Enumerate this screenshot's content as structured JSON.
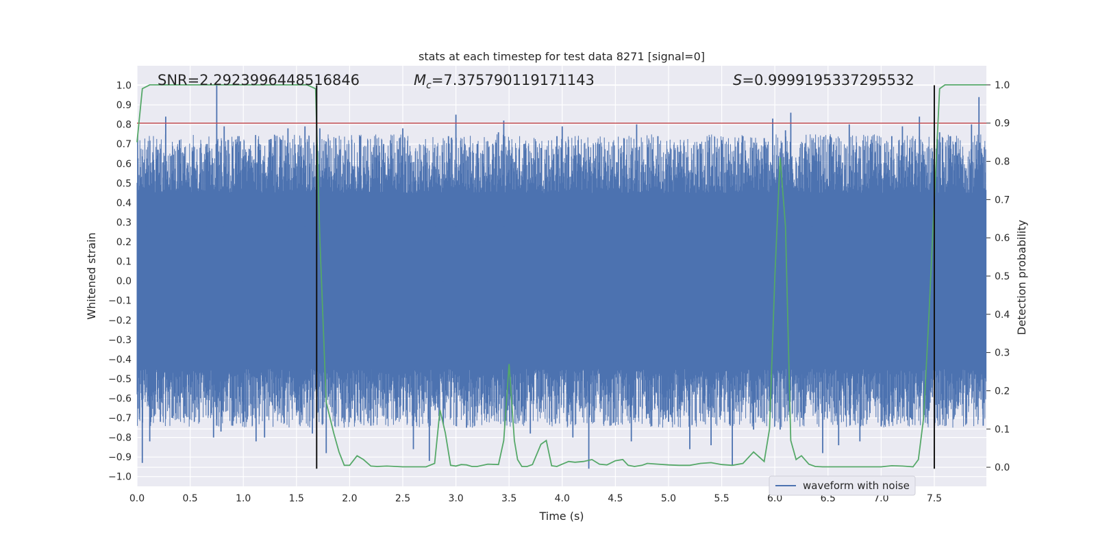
{
  "chart_data": {
    "type": "line",
    "title": "stats at each timestep for test data 8271 [signal=0]",
    "xlabel": "Time (s)",
    "ylabel": "Whitened strain",
    "y2label": "Detection probability",
    "xlim": [
      0.0,
      7.99
    ],
    "ylim": [
      -1.05,
      1.1
    ],
    "y2lim": [
      -0.05,
      1.05
    ],
    "x_ticks": [
      "0.0",
      "0.5",
      "1.0",
      "1.5",
      "2.0",
      "2.5",
      "3.0",
      "3.5",
      "4.0",
      "4.5",
      "5.0",
      "5.5",
      "6.0",
      "6.5",
      "7.0",
      "7.5"
    ],
    "y_ticks": [
      "1.0",
      "0.9",
      "0.8",
      "0.7",
      "0.6",
      "0.5",
      "0.4",
      "0.3",
      "0.2",
      "0.1",
      "0.0",
      "−0.1",
      "−0.2",
      "−0.3",
      "−0.4",
      "−0.5",
      "−0.6",
      "−0.7",
      "−0.8",
      "−0.9",
      "−1.0"
    ],
    "y2_ticks": [
      "1.0",
      "0.9",
      "0.8",
      "0.7",
      "0.6",
      "0.5",
      "0.4",
      "0.3",
      "0.2",
      "0.1",
      "0.0"
    ],
    "grid": true,
    "legend_position": "lower right",
    "annotations": {
      "snr": "SNR=2.2923996448516846",
      "mc_symbol": "M",
      "mc_sub": "c",
      "mc_value": "=7.375790119171143",
      "s_symbol": "S",
      "s_value": "=0.9999195337295532"
    },
    "threshold_probability": 0.9,
    "vertical_lines_x": [
      1.69,
      7.5
    ],
    "series": [
      {
        "name": "waveform with noise",
        "color": "#4c72b0",
        "style": "dense noise",
        "core_amplitude": 0.45,
        "spikes": [
          [
            0.05,
            -0.93
          ],
          [
            0.08,
            0.55
          ],
          [
            0.12,
            -0.82
          ],
          [
            0.18,
            0.62
          ],
          [
            0.22,
            -0.72
          ],
          [
            0.27,
            0.84
          ],
          [
            0.33,
            -0.7
          ],
          [
            0.4,
            0.72
          ],
          [
            0.45,
            -0.64
          ],
          [
            0.52,
            0.66
          ],
          [
            0.6,
            -0.6
          ],
          [
            0.66,
            0.7
          ],
          [
            0.72,
            -0.8
          ],
          [
            0.75,
            1.0
          ],
          [
            0.79,
            -0.77
          ],
          [
            0.82,
            0.79
          ],
          [
            0.9,
            -0.74
          ],
          [
            0.95,
            0.74
          ],
          [
            1.0,
            -0.72
          ],
          [
            1.05,
            0.64
          ],
          [
            1.12,
            -0.82
          ],
          [
            1.15,
            0.7
          ],
          [
            1.2,
            -0.8
          ],
          [
            1.25,
            0.66
          ],
          [
            1.32,
            -0.64
          ],
          [
            1.42,
            0.78
          ],
          [
            1.5,
            -0.66
          ],
          [
            1.58,
            0.79
          ],
          [
            1.65,
            -0.78
          ],
          [
            1.72,
            0.78
          ],
          [
            1.78,
            -0.88
          ],
          [
            1.87,
            0.73
          ],
          [
            2.0,
            -0.58
          ],
          [
            2.1,
            0.74
          ],
          [
            2.2,
            -0.74
          ],
          [
            2.32,
            0.7
          ],
          [
            2.45,
            -0.7
          ],
          [
            2.5,
            0.78
          ],
          [
            2.6,
            -0.86
          ],
          [
            2.67,
            0.62
          ],
          [
            2.75,
            -0.92
          ],
          [
            2.8,
            0.68
          ],
          [
            2.88,
            -0.72
          ],
          [
            2.93,
            0.74
          ],
          [
            3.0,
            0.85
          ],
          [
            3.1,
            -0.75
          ],
          [
            3.2,
            0.7
          ],
          [
            3.3,
            -0.68
          ],
          [
            3.4,
            0.76
          ],
          [
            3.45,
            0.82
          ],
          [
            3.55,
            -0.64
          ],
          [
            3.64,
            0.7
          ],
          [
            3.7,
            -0.78
          ],
          [
            3.8,
            0.68
          ],
          [
            3.9,
            -0.72
          ],
          [
            3.95,
            0.74
          ],
          [
            4.0,
            0.79
          ],
          [
            4.1,
            -0.8
          ],
          [
            4.15,
            0.72
          ],
          [
            4.25,
            -0.96
          ],
          [
            4.35,
            0.7
          ],
          [
            4.45,
            -0.74
          ],
          [
            4.58,
            0.73
          ],
          [
            4.65,
            -0.82
          ],
          [
            4.7,
            0.8
          ],
          [
            4.8,
            -0.68
          ],
          [
            4.9,
            0.74
          ],
          [
            5.0,
            -0.72
          ],
          [
            5.1,
            0.66
          ],
          [
            5.2,
            -0.86
          ],
          [
            5.3,
            0.7
          ],
          [
            5.4,
            -0.84
          ],
          [
            5.5,
            0.72
          ],
          [
            5.6,
            -0.94
          ],
          [
            5.7,
            0.74
          ],
          [
            5.8,
            -0.76
          ],
          [
            5.9,
            0.73
          ],
          [
            5.98,
            0.83
          ],
          [
            6.05,
            -0.76
          ],
          [
            6.1,
            0.77
          ],
          [
            6.15,
            0.86
          ],
          [
            6.25,
            -0.7
          ],
          [
            6.35,
            0.72
          ],
          [
            6.45,
            -0.88
          ],
          [
            6.52,
            0.74
          ],
          [
            6.6,
            -0.84
          ],
          [
            6.7,
            0.8
          ],
          [
            6.8,
            -0.82
          ],
          [
            6.9,
            0.7
          ],
          [
            7.0,
            -0.72
          ],
          [
            7.1,
            0.74
          ],
          [
            7.2,
            0.79
          ],
          [
            7.28,
            -0.7
          ],
          [
            7.36,
            0.84
          ],
          [
            7.45,
            -0.66
          ],
          [
            7.55,
            0.76
          ],
          [
            7.62,
            -0.68
          ],
          [
            7.7,
            0.71
          ],
          [
            7.8,
            -0.7
          ],
          [
            7.85,
            0.8
          ],
          [
            7.92,
            0.94
          ],
          [
            7.96,
            -0.74
          ]
        ]
      },
      {
        "name": "",
        "color": "#55a868",
        "axis": "right",
        "x": [
          0.0,
          0.05,
          0.12,
          0.3,
          0.6,
          1.0,
          1.4,
          1.6,
          1.68,
          1.72,
          1.78,
          1.85,
          1.9,
          1.95,
          2.0,
          2.07,
          2.13,
          2.2,
          2.26,
          2.35,
          2.5,
          2.6,
          2.72,
          2.8,
          2.85,
          2.9,
          2.95,
          3.0,
          3.05,
          3.1,
          3.15,
          3.2,
          3.3,
          3.4,
          3.45,
          3.5,
          3.55,
          3.58,
          3.62,
          3.67,
          3.72,
          3.8,
          3.85,
          3.9,
          3.95,
          4.0,
          4.06,
          4.12,
          4.2,
          4.28,
          4.35,
          4.42,
          4.5,
          4.57,
          4.62,
          4.68,
          4.75,
          4.8,
          4.9,
          5.0,
          5.1,
          5.2,
          5.3,
          5.4,
          5.5,
          5.6,
          5.7,
          5.8,
          5.9,
          5.95,
          6.0,
          6.05,
          6.1,
          6.15,
          6.2,
          6.25,
          6.32,
          6.38,
          6.45,
          6.5,
          6.6,
          6.8,
          7.0,
          7.1,
          7.2,
          7.3,
          7.35,
          7.4,
          7.45,
          7.5,
          7.55,
          7.6,
          7.7,
          7.8,
          7.99
        ],
        "y": [
          0.85,
          0.99,
          1.0,
          1.0,
          1.0,
          1.0,
          1.0,
          1.0,
          0.99,
          0.6,
          0.17,
          0.09,
          0.04,
          0.005,
          0.005,
          0.03,
          0.02,
          0.003,
          0.002,
          0.003,
          0.001,
          0.001,
          0.001,
          0.01,
          0.15,
          0.09,
          0.005,
          0.003,
          0.007,
          0.006,
          0.002,
          0.002,
          0.008,
          0.007,
          0.07,
          0.27,
          0.07,
          0.02,
          0.002,
          0.002,
          0.007,
          0.06,
          0.07,
          0.004,
          0.002,
          0.008,
          0.015,
          0.013,
          0.015,
          0.02,
          0.008,
          0.006,
          0.017,
          0.02,
          0.005,
          0.002,
          0.005,
          0.01,
          0.008,
          0.006,
          0.005,
          0.005,
          0.01,
          0.012,
          0.007,
          0.005,
          0.01,
          0.04,
          0.015,
          0.1,
          0.5,
          0.81,
          0.63,
          0.07,
          0.02,
          0.03,
          0.008,
          0.002,
          0.001,
          0.001,
          0.001,
          0.001,
          0.001,
          0.004,
          0.003,
          0.001,
          0.02,
          0.13,
          0.4,
          0.7,
          0.99,
          1.0,
          1.0,
          1.0,
          1.0
        ]
      },
      {
        "name": "",
        "color": "#c44e52",
        "axis": "right",
        "style": "horizontal threshold",
        "y_value": 0.9
      }
    ]
  }
}
